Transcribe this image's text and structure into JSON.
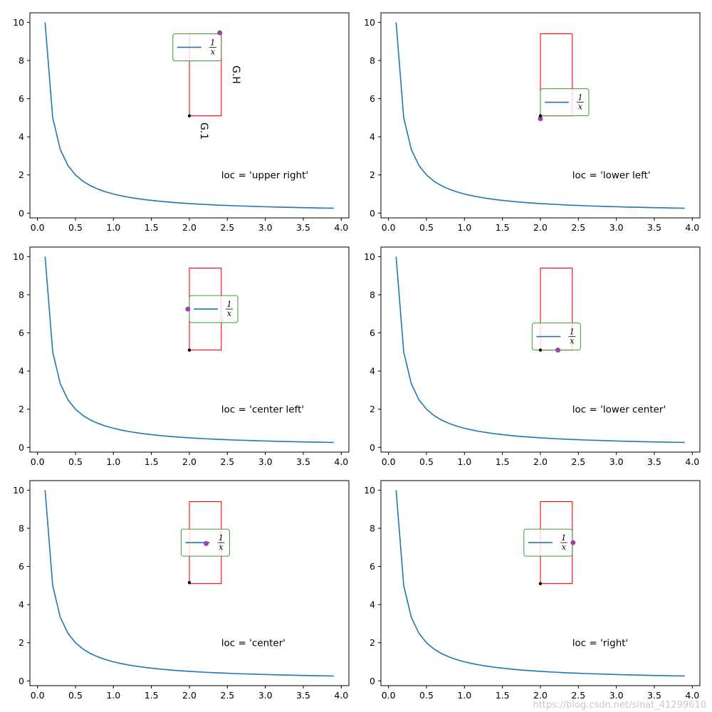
{
  "colors": {
    "curve": "#1f77b4",
    "anchor_box": "#ff0000",
    "legend_border": "#3a9a3a",
    "marker_purple": "#a040b0",
    "marker_black": "#000000",
    "axes": "#000000"
  },
  "legend_label": {
    "numerator": "1",
    "denominator": "x"
  },
  "watermark": "https://blog.csdn.net/sinat_41299610",
  "annotation_marks": [
    "G.1",
    "G.H"
  ],
  "chart_data": [
    {
      "type": "line",
      "title": "",
      "annotation": "loc = 'upper right'",
      "series": [
        {
          "name": "1/x",
          "function": "1/x",
          "x_range": [
            0.1,
            3.9
          ],
          "step": 0.1
        }
      ],
      "xlim": [
        -0.1,
        4.1
      ],
      "ylim": [
        -0.25,
        10.5
      ],
      "xticks": [
        "0.0",
        "0.5",
        "1.0",
        "1.5",
        "2.0",
        "2.5",
        "3.0",
        "3.5",
        "4.0"
      ],
      "yticks": [
        "0",
        "2",
        "4",
        "6",
        "8",
        "10"
      ],
      "bbox_to_anchor": {
        "x0": 2.0,
        "y0": 5.1,
        "x1": 2.42,
        "y1": 9.4
      },
      "legend_loc": "upper right",
      "markers": {
        "purple": [
          2.4,
          9.45
        ],
        "black": [
          2.0,
          5.1
        ]
      }
    },
    {
      "type": "line",
      "title": "",
      "annotation": "loc = 'lower left'",
      "series": [
        {
          "name": "1/x",
          "function": "1/x",
          "x_range": [
            0.1,
            3.9
          ],
          "step": 0.1
        }
      ],
      "xlim": [
        -0.1,
        4.1
      ],
      "ylim": [
        -0.25,
        10.5
      ],
      "xticks": [
        "0.0",
        "0.5",
        "1.0",
        "1.5",
        "2.0",
        "2.5",
        "3.0",
        "3.5",
        "4.0"
      ],
      "yticks": [
        "0",
        "2",
        "4",
        "6",
        "8",
        "10"
      ],
      "bbox_to_anchor": {
        "x0": 2.0,
        "y0": 5.1,
        "x1": 2.42,
        "y1": 9.4
      },
      "legend_loc": "lower left",
      "markers": {
        "purple": [
          2.0,
          4.95
        ],
        "black": [
          2.0,
          5.1
        ]
      }
    },
    {
      "type": "line",
      "title": "",
      "annotation": "loc = 'center left'",
      "series": [
        {
          "name": "1/x",
          "function": "1/x",
          "x_range": [
            0.1,
            3.9
          ],
          "step": 0.1
        }
      ],
      "xlim": [
        -0.1,
        4.1
      ],
      "ylim": [
        -0.25,
        10.5
      ],
      "xticks": [
        "0.0",
        "0.5",
        "1.0",
        "1.5",
        "2.0",
        "2.5",
        "3.0",
        "3.5",
        "4.0"
      ],
      "yticks": [
        "0",
        "2",
        "4",
        "6",
        "8",
        "10"
      ],
      "bbox_to_anchor": {
        "x0": 2.0,
        "y0": 5.1,
        "x1": 2.42,
        "y1": 9.4
      },
      "legend_loc": "center left",
      "markers": {
        "purple": [
          1.98,
          7.25
        ],
        "black": [
          2.0,
          5.1
        ]
      }
    },
    {
      "type": "line",
      "title": "",
      "annotation": "loc = 'lower center'",
      "series": [
        {
          "name": "1/x",
          "function": "1/x",
          "x_range": [
            0.1,
            3.9
          ],
          "step": 0.1
        }
      ],
      "xlim": [
        -0.1,
        4.1
      ],
      "ylim": [
        -0.25,
        10.5
      ],
      "xticks": [
        "0.0",
        "0.5",
        "1.0",
        "1.5",
        "2.0",
        "2.5",
        "3.0",
        "3.5",
        "4.0"
      ],
      "yticks": [
        "0",
        "2",
        "4",
        "6",
        "8",
        "10"
      ],
      "bbox_to_anchor": {
        "x0": 2.0,
        "y0": 5.1,
        "x1": 2.42,
        "y1": 9.4
      },
      "legend_loc": "lower center",
      "markers": {
        "purple": [
          2.23,
          5.1
        ],
        "black": [
          2.0,
          5.1
        ]
      }
    },
    {
      "type": "line",
      "title": "",
      "annotation": "loc = 'center'",
      "series": [
        {
          "name": "1/x",
          "function": "1/x",
          "x_range": [
            0.1,
            3.9
          ],
          "step": 0.1
        }
      ],
      "xlim": [
        -0.1,
        4.1
      ],
      "ylim": [
        -0.25,
        10.5
      ],
      "xticks": [
        "0.0",
        "0.5",
        "1.0",
        "1.5",
        "2.0",
        "2.5",
        "3.0",
        "3.5",
        "4.0"
      ],
      "yticks": [
        "0",
        "2",
        "4",
        "6",
        "8",
        "10"
      ],
      "bbox_to_anchor": {
        "x0": 2.0,
        "y0": 5.1,
        "x1": 2.42,
        "y1": 9.4
      },
      "legend_loc": "center",
      "markers": {
        "purple": [
          2.22,
          7.2
        ],
        "black": [
          2.0,
          5.15
        ]
      }
    },
    {
      "type": "line",
      "title": "",
      "annotation": "loc = 'right'",
      "series": [
        {
          "name": "1/x",
          "function": "1/x",
          "x_range": [
            0.1,
            3.9
          ],
          "step": 0.1
        }
      ],
      "xlim": [
        -0.1,
        4.1
      ],
      "ylim": [
        -0.25,
        10.5
      ],
      "xticks": [
        "0.0",
        "0.5",
        "1.0",
        "1.5",
        "2.0",
        "2.5",
        "3.0",
        "3.5",
        "4.0"
      ],
      "yticks": [
        "0",
        "2",
        "4",
        "6",
        "8",
        "10"
      ],
      "bbox_to_anchor": {
        "x0": 2.0,
        "y0": 5.1,
        "x1": 2.42,
        "y1": 9.4
      },
      "legend_loc": "right",
      "markers": {
        "purple": [
          2.43,
          7.25
        ],
        "black": [
          2.0,
          5.1
        ]
      }
    }
  ]
}
